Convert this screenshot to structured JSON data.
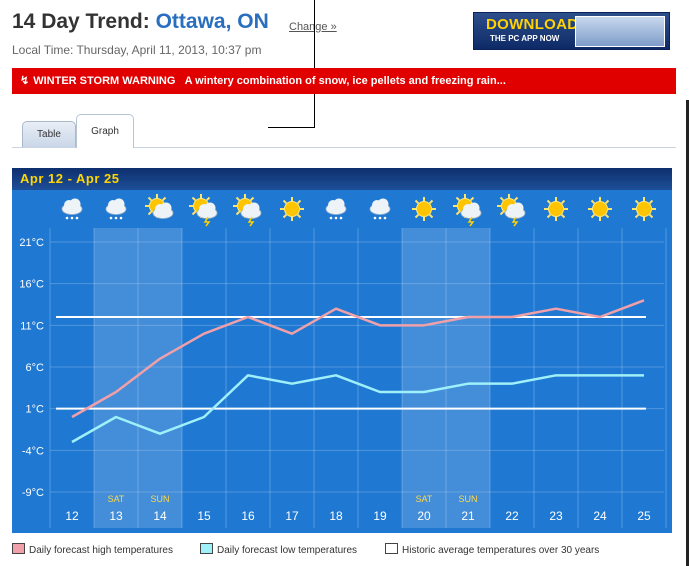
{
  "header": {
    "title_prefix": "14 Day Trend:",
    "city": "Ottawa, ON",
    "change_link": "Change »",
    "local_time": "Local Time: Thursday, April 11, 2013, 10:37 pm"
  },
  "ad": {
    "title": "DOWNLOAD",
    "subtitle": "THE PC APP NOW"
  },
  "warning": {
    "label": "WINTER STORM WARNING",
    "text": "A wintery combination of snow, ice pellets and freezing rain..."
  },
  "tabs": [
    {
      "label": "Table",
      "active": false
    },
    {
      "label": "Graph",
      "active": true
    }
  ],
  "panel": {
    "range": "Apr 12  -  Apr 25"
  },
  "colors": {
    "high": "#f0a0a8",
    "low": "#9ff0f8",
    "average": "#ffffff",
    "panel": "#1f78d2",
    "warning": "#e00000"
  },
  "chart_data": {
    "type": "line",
    "x": [
      "12",
      "13",
      "14",
      "15",
      "16",
      "17",
      "18",
      "19",
      "20",
      "21",
      "22",
      "23",
      "24",
      "25"
    ],
    "weekday_labels": [
      "",
      "SAT",
      "SUN",
      "",
      "",
      "",
      "",
      "",
      "SAT",
      "SUN",
      "",
      "",
      "",
      ""
    ],
    "weather_icons": [
      "snow-rain-icon",
      "snow-icon",
      "sun-cloud-icon",
      "sun-storm-icon",
      "sun-storm-icon",
      "sun-icon",
      "snow-icon",
      "snow-icon",
      "sun-icon",
      "sun-storm-icon",
      "sun-storm-icon",
      "sun-icon",
      "sun-icon",
      "sun-icon"
    ],
    "y_tick_labels": [
      "21°C",
      "16°C",
      "11°C",
      "6°C",
      "1°C",
      "-4°C",
      "-9°C"
    ],
    "y_ticks": [
      21,
      16,
      11,
      6,
      1,
      -4,
      -9
    ],
    "ylim": [
      -12,
      24
    ],
    "series": [
      {
        "name": "Daily forecast high temperatures",
        "values": [
          0,
          3,
          7,
          10,
          12,
          10,
          13,
          11,
          11,
          12,
          12,
          13,
          12,
          14
        ]
      },
      {
        "name": "Daily forecast low temperatures",
        "values": [
          -3,
          0,
          -2,
          0,
          5,
          4,
          5,
          3,
          3,
          4,
          4,
          5,
          5,
          5
        ]
      }
    ],
    "averages": [
      {
        "name": "Historic average high",
        "value": 12
      },
      {
        "name": "Historic average low",
        "value": 1
      }
    ],
    "legend": [
      "Daily forecast high temperatures",
      "Daily forecast low temperatures",
      "Historic average temperatures over 30 years"
    ],
    "legend_placement": "bottom",
    "grid": true
  }
}
